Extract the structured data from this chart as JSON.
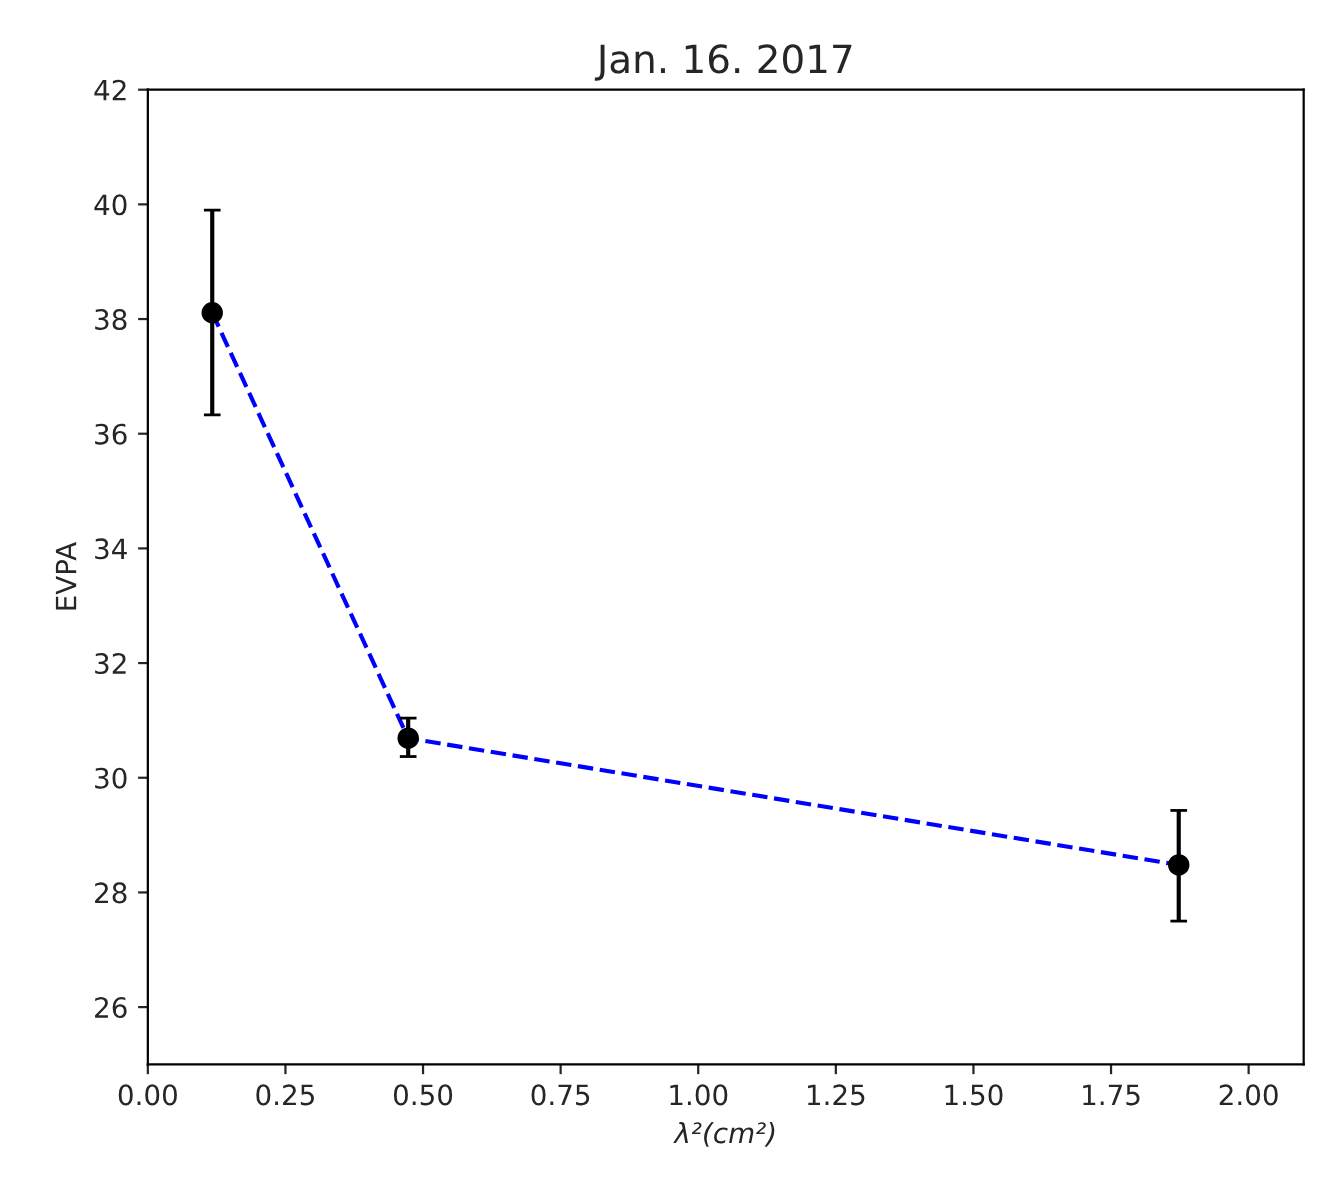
{
  "chart_data": {
    "type": "line",
    "title": "Jan. 16. 2017",
    "xlabel": "λ²(cm²)",
    "ylabel": "EVPA",
    "x": [
      0.117,
      0.473,
      1.873
    ],
    "series": [
      {
        "color": "#0000ff",
        "values": [
          38.11,
          30.69,
          28.48
        ],
        "line_style": "dashed"
      },
      {
        "type": "scatter",
        "color": "#000000",
        "values": [
          38.11,
          30.69,
          28.48
        ],
        "marker": "circle",
        "errors": [
          [
            36.33,
            39.9
          ],
          [
            30.37,
            31.04
          ],
          [
            27.5,
            29.43
          ]
        ]
      }
    ],
    "xlim": [
      0,
      2.1
    ],
    "xticks": [
      {
        "value": 0,
        "label": "0.00"
      },
      0.25,
      {
        "value": 0.5,
        "label": "0.50"
      },
      0.75,
      {
        "value": 1,
        "label": "1.00"
      },
      1.25,
      {
        "value": 1.5,
        "label": "1.50"
      },
      1.75,
      {
        "value": 2,
        "label": "2.00"
      }
    ],
    "ylim": [
      25,
      42
    ],
    "yticks": [
      26,
      28,
      30,
      32,
      34,
      36,
      38,
      40,
      42
    ],
    "grid": false
  }
}
